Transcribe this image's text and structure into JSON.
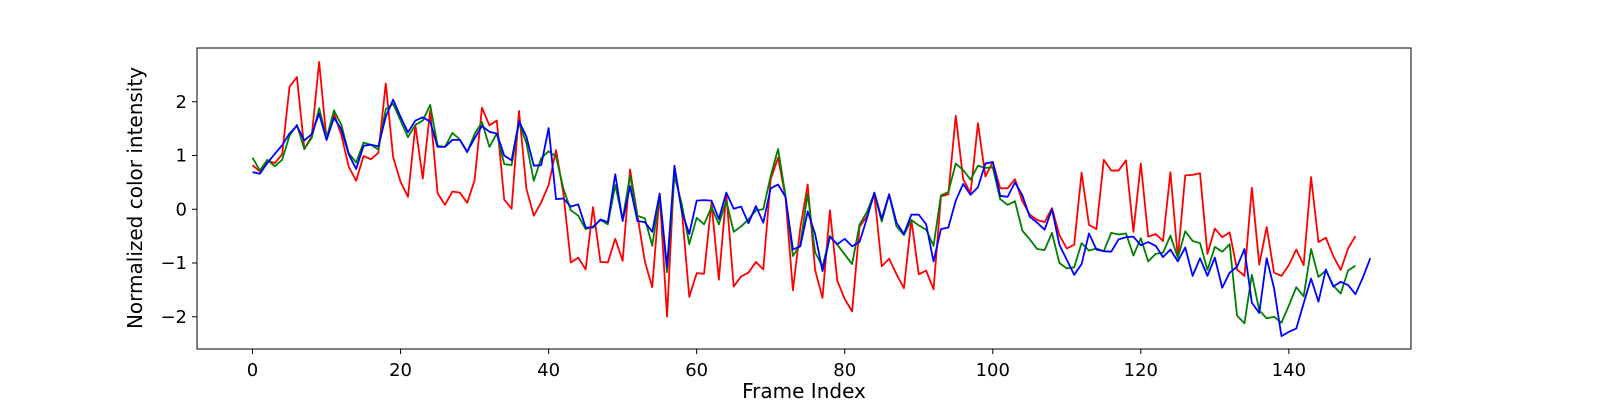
{
  "chart_data": {
    "type": "line",
    "title": "",
    "xlabel": "Frame Index",
    "ylabel": "Normalized color intensity",
    "xlim": [
      -7.5,
      156.5
    ],
    "ylim": [
      -2.6,
      3.0
    ],
    "xticks": [
      0,
      20,
      40,
      60,
      80,
      100,
      120,
      140
    ],
    "yticks": [
      -2,
      -1,
      0,
      1,
      2
    ],
    "grid": false,
    "legend": "none",
    "series": [
      {
        "color": "#ff0000",
        "values": [
          0.82,
          0.7,
          0.9,
          0.86,
          1.02,
          2.28,
          2.46,
          1.12,
          1.36,
          2.74,
          1.3,
          1.78,
          1.38,
          0.79,
          0.53,
          0.99,
          0.93,
          1.05,
          2.34,
          0.97,
          0.51,
          0.23,
          1.56,
          0.57,
          1.84,
          0.3,
          0.08,
          0.33,
          0.31,
          0.12,
          0.54,
          1.89,
          1.56,
          1.65,
          0.18,
          0.01,
          1.83,
          0.38,
          -0.12,
          0.13,
          0.45,
          1.1,
          0.29,
          -0.99,
          -0.9,
          -1.12,
          0.04,
          -0.98,
          -0.99,
          -0.55,
          -0.96,
          0.74,
          -0.12,
          -0.97,
          -1.45,
          0.28,
          -2.0,
          0.77,
          -0.03,
          -1.63,
          -1.19,
          -1.2,
          0.12,
          -1.31,
          0.29,
          -1.44,
          -1.25,
          -1.18,
          -0.98,
          -1.12,
          0.56,
          0.96,
          0.22,
          -1.51,
          -0.35,
          0.46,
          -1.13,
          -1.65,
          -0.02,
          -1.33,
          -1.67,
          -1.9,
          -0.33,
          -0.13,
          0.28,
          -1.06,
          -0.92,
          -1.21,
          -1.47,
          -0.2,
          -1.21,
          -1.14,
          -1.49,
          0.24,
          0.28,
          1.74,
          0.56,
          0.3,
          1.6,
          0.61,
          0.88,
          0.39,
          0.39,
          0.56,
          0.15,
          -0.1,
          -0.2,
          -0.24,
          0.02,
          -0.48,
          -0.73,
          -0.66,
          0.68,
          -0.29,
          -0.37,
          0.92,
          0.72,
          0.72,
          0.91,
          -0.42,
          0.85,
          -0.51,
          -0.46,
          -0.59,
          0.69,
          -0.9,
          0.63,
          0.64,
          0.67,
          -0.83,
          -0.36,
          -0.52,
          -0.43,
          -1.12,
          -1.24,
          0.4,
          -1.03,
          -0.33,
          -1.18,
          -1.24,
          -1.04,
          -0.75,
          -1.04,
          0.6,
          -0.61,
          -0.53,
          -0.87,
          -1.13,
          -0.73,
          -0.5
        ]
      },
      {
        "color": "#008000",
        "values": [
          0.96,
          0.72,
          0.92,
          0.8,
          0.92,
          1.37,
          1.57,
          1.12,
          1.33,
          1.88,
          1.32,
          1.84,
          1.57,
          1.04,
          0.87,
          1.24,
          1.2,
          1.11,
          1.86,
          1.96,
          1.65,
          1.34,
          1.57,
          1.65,
          1.94,
          1.18,
          1.16,
          1.42,
          1.3,
          1.06,
          1.4,
          1.62,
          1.16,
          1.41,
          0.84,
          0.82,
          1.61,
          1.23,
          0.53,
          0.95,
          1.08,
          0.98,
          0.38,
          -0.02,
          -0.12,
          -0.37,
          -0.32,
          -0.2,
          -0.28,
          0.45,
          -0.19,
          0.63,
          -0.12,
          -0.17,
          -0.68,
          0.25,
          -1.17,
          0.62,
          0.09,
          -0.65,
          -0.16,
          -0.28,
          0.04,
          -0.28,
          0.16,
          -0.42,
          -0.32,
          -0.19,
          -0.02,
          0.0,
          0.62,
          1.12,
          0.25,
          -0.87,
          -0.66,
          0.29,
          -0.8,
          -1.07,
          -0.5,
          -0.66,
          -0.84,
          -1.02,
          -0.29,
          -0.05,
          0.3,
          -0.23,
          0.27,
          -0.32,
          -0.48,
          -0.2,
          -0.3,
          -0.38,
          -0.68,
          0.26,
          0.32,
          0.85,
          0.73,
          0.55,
          0.81,
          0.77,
          0.78,
          0.19,
          0.08,
          0.15,
          -0.4,
          -0.56,
          -0.74,
          -0.76,
          -0.44,
          -1.0,
          -1.1,
          -1.08,
          -0.63,
          -0.77,
          -0.73,
          -0.78,
          -0.44,
          -0.47,
          -0.45,
          -0.86,
          -0.54,
          -0.97,
          -0.83,
          -0.81,
          -0.49,
          -0.9,
          -0.41,
          -0.59,
          -0.63,
          -1.13,
          -0.7,
          -0.79,
          -0.65,
          -1.98,
          -2.12,
          -1.22,
          -1.88,
          -2.03,
          -2.0,
          -2.11,
          -1.79,
          -1.45,
          -1.62,
          -0.74,
          -1.26,
          -1.14,
          -1.42,
          -1.57,
          -1.14,
          -1.05
        ]
      },
      {
        "color": "#0000ff",
        "values": [
          0.69,
          0.66,
          0.86,
          1.03,
          1.19,
          1.41,
          1.55,
          1.28,
          1.4,
          1.78,
          1.29,
          1.7,
          1.49,
          1.02,
          0.75,
          1.18,
          1.2,
          1.17,
          1.72,
          2.04,
          1.72,
          1.43,
          1.65,
          1.71,
          1.63,
          1.16,
          1.16,
          1.29,
          1.29,
          1.07,
          1.32,
          1.55,
          1.44,
          1.41,
          1.0,
          0.91,
          1.64,
          1.35,
          0.81,
          0.82,
          1.51,
          0.19,
          0.2,
          0.05,
          0.09,
          -0.34,
          -0.34,
          -0.19,
          -0.24,
          0.65,
          -0.22,
          0.43,
          -0.22,
          -0.24,
          -0.42,
          0.29,
          -1.08,
          0.81,
          -0.05,
          -0.46,
          0.16,
          0.17,
          0.16,
          -0.18,
          0.31,
          0.01,
          0.05,
          -0.26,
          0.06,
          -0.25,
          0.39,
          0.46,
          0.23,
          -0.75,
          -0.69,
          -0.04,
          -0.46,
          -1.15,
          -0.51,
          -0.65,
          -0.55,
          -0.69,
          -0.61,
          -0.17,
          0.31,
          -0.18,
          0.28,
          -0.25,
          -0.46,
          -0.1,
          -0.1,
          -0.28,
          -0.97,
          -0.37,
          -0.34,
          0.16,
          0.47,
          0.27,
          0.41,
          0.85,
          0.88,
          0.25,
          0.23,
          0.5,
          0.26,
          -0.14,
          -0.25,
          -0.38,
          0.0,
          -0.66,
          -0.94,
          -1.22,
          -1.02,
          -0.45,
          -0.75,
          -0.78,
          -0.79,
          -0.56,
          -0.52,
          -0.51,
          -0.67,
          -0.61,
          -0.68,
          -0.89,
          -0.75,
          -0.97,
          -0.71,
          -1.24,
          -0.91,
          -1.24,
          -0.9,
          -1.46,
          -1.18,
          -1.07,
          -0.74,
          -1.74,
          -1.93,
          -0.91,
          -1.47,
          -2.36,
          -2.28,
          -2.22,
          -1.75,
          -1.29,
          -1.72,
          -1.12,
          -1.44,
          -1.35,
          -1.41,
          -1.58,
          -1.27,
          -0.91
        ]
      }
    ]
  }
}
